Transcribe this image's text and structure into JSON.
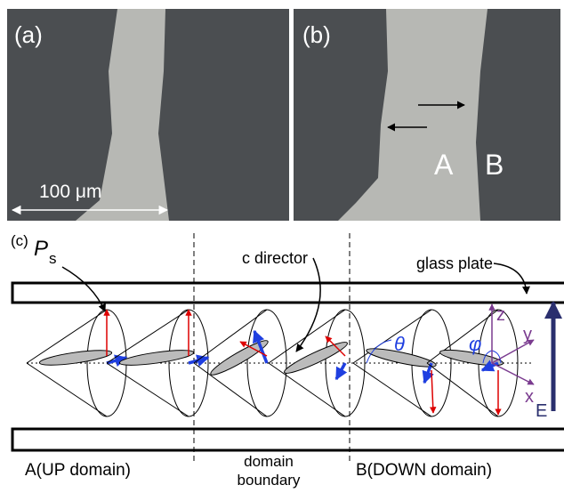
{
  "panel_a": {
    "label": "(a)",
    "scale_bar": "100 μm"
  },
  "panel_b": {
    "label": "(b)",
    "markers": [
      "A",
      "B"
    ]
  },
  "panel_c": {
    "label": "(c)",
    "ps_symbol": "P",
    "ps_subscript": "s",
    "c_director": "c director",
    "glass_plate": "glass plate",
    "axes": {
      "z": "z",
      "y": "y",
      "x": "x",
      "field": "E"
    },
    "angles": {
      "theta": "θ",
      "phi": "φ"
    },
    "regions": {
      "up": "A(UP domain)",
      "boundary": [
        "domain",
        "boundary"
      ],
      "down": "B(DOWN domain)"
    }
  }
}
